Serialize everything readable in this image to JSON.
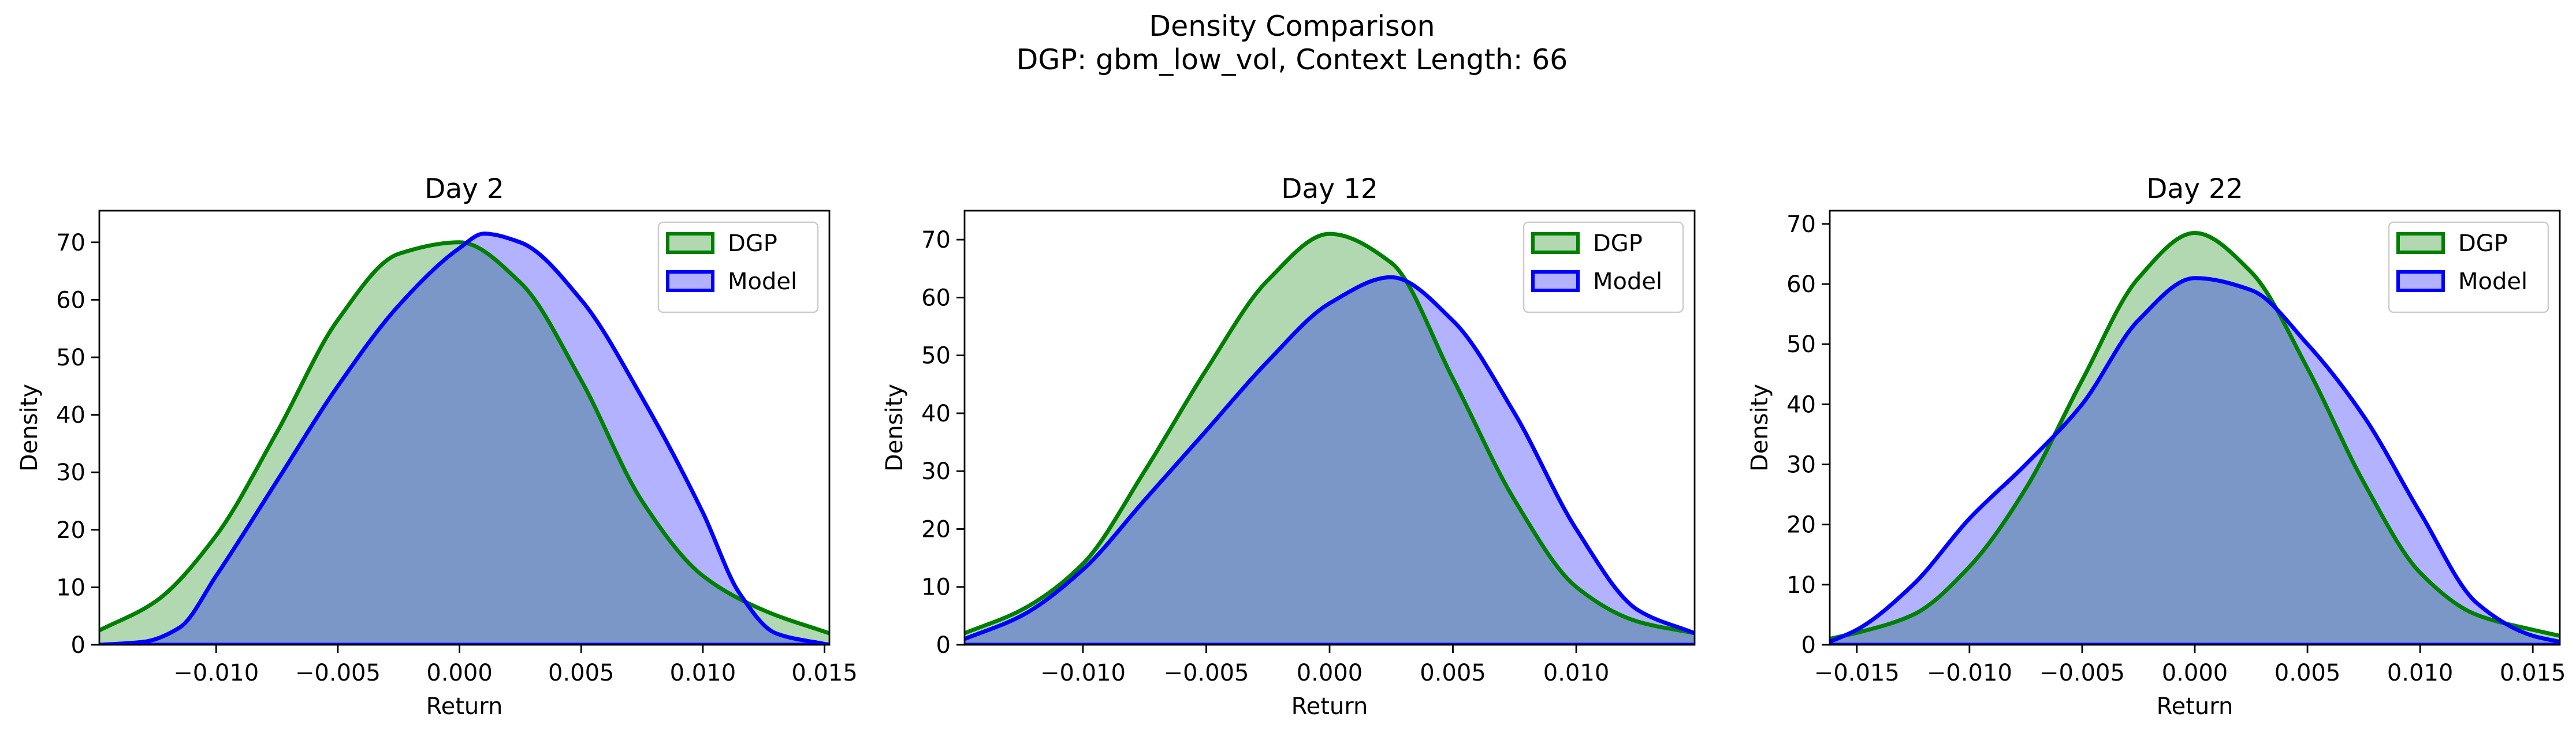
{
  "figure": {
    "title_line1": "Density Comparison",
    "title_line2": "DGP: gbm_low_vol, Context Length: 66"
  },
  "colors": {
    "dgp_line": "#008000",
    "dgp_fill": "#b2d8b2",
    "model_line": "#0000ff",
    "model_fill": "#b2b2ff",
    "overlap_fill": "#7b97c8"
  },
  "chart_data": [
    {
      "type": "area",
      "title": "Day 2",
      "xlabel": "Return",
      "ylabel": "Density",
      "xlim": [
        -0.0148,
        0.0152
      ],
      "ylim": [
        0,
        75.5
      ],
      "xticks": [
        -0.01,
        -0.005,
        0.0,
        0.005,
        0.01,
        0.015
      ],
      "xtick_labels": [
        "−0.010",
        "−0.005",
        "0.000",
        "0.005",
        "0.010",
        "0.015"
      ],
      "yticks": [
        0,
        10,
        20,
        30,
        40,
        50,
        60,
        70
      ],
      "ytick_labels": [
        "0",
        "10",
        "20",
        "30",
        "40",
        "50",
        "60",
        "70"
      ],
      "legend": {
        "position": "upper-right",
        "entries": [
          "DGP",
          "Model"
        ]
      },
      "series": [
        {
          "name": "DGP",
          "x": [
            -0.0148,
            -0.0125,
            -0.01,
            -0.0075,
            -0.005,
            -0.0025,
            0.0,
            0.0025,
            0.005,
            0.0075,
            0.01,
            0.0125,
            0.0152
          ],
          "y": [
            2.5,
            7.5,
            19,
            37,
            56.5,
            68,
            70,
            63,
            46,
            25,
            12,
            6,
            2
          ]
        },
        {
          "name": "Model",
          "x": [
            -0.0148,
            -0.013,
            -0.0115,
            -0.01,
            -0.0075,
            -0.005,
            -0.0025,
            0.0,
            0.001,
            0.0025,
            0.005,
            0.0075,
            0.01,
            0.0115,
            0.013,
            0.0152
          ],
          "y": [
            0,
            0.5,
            3,
            12,
            28.5,
            45,
            59,
            69,
            71.5,
            70,
            60,
            43,
            23,
            9,
            2,
            0
          ]
        }
      ]
    },
    {
      "type": "area",
      "title": "Day 12",
      "xlabel": "Return",
      "ylabel": "Density",
      "xlim": [
        -0.0148,
        0.0148
      ],
      "ylim": [
        0,
        75.0
      ],
      "xticks": [
        -0.01,
        -0.005,
        0.0,
        0.005,
        0.01
      ],
      "xtick_labels": [
        "−0.010",
        "−0.005",
        "0.000",
        "0.005",
        "0.010"
      ],
      "yticks": [
        0,
        10,
        20,
        30,
        40,
        50,
        60,
        70
      ],
      "ytick_labels": [
        "0",
        "10",
        "20",
        "30",
        "40",
        "50",
        "60",
        "70"
      ],
      "legend": {
        "position": "upper-right",
        "entries": [
          "DGP",
          "Model"
        ]
      },
      "series": [
        {
          "name": "DGP",
          "x": [
            -0.0148,
            -0.0125,
            -0.01,
            -0.0075,
            -0.005,
            -0.0025,
            0.0,
            0.0025,
            0.005,
            0.0075,
            0.01,
            0.0125,
            0.0148
          ],
          "y": [
            2,
            6,
            14,
            30,
            47.5,
            63,
            71,
            66,
            46,
            25,
            10,
            4,
            2
          ]
        },
        {
          "name": "Model",
          "x": [
            -0.0148,
            -0.0125,
            -0.01,
            -0.0075,
            -0.005,
            -0.0025,
            0.0,
            0.0025,
            0.005,
            0.0075,
            0.01,
            0.0125,
            0.0148
          ],
          "y": [
            1,
            5,
            13,
            25,
            37,
            49,
            59,
            63.5,
            56,
            40,
            20,
            6,
            2
          ]
        }
      ]
    },
    {
      "type": "area",
      "title": "Day 22",
      "xlabel": "Return",
      "ylabel": "Density",
      "xlim": [
        -0.0162,
        0.0162
      ],
      "ylim": [
        0,
        72.2
      ],
      "xticks": [
        -0.015,
        -0.01,
        -0.005,
        0.0,
        0.005,
        0.01,
        0.015
      ],
      "xtick_labels": [
        "−0.015",
        "−0.010",
        "−0.005",
        "0.000",
        "0.005",
        "0.010",
        "0.015"
      ],
      "yticks": [
        0,
        10,
        20,
        30,
        40,
        50,
        60,
        70
      ],
      "ytick_labels": [
        "0",
        "10",
        "20",
        "30",
        "40",
        "50",
        "60",
        "70"
      ],
      "legend": {
        "position": "upper-right",
        "entries": [
          "DGP",
          "Model"
        ]
      },
      "series": [
        {
          "name": "DGP",
          "x": [
            -0.0162,
            -0.015,
            -0.0125,
            -0.01,
            -0.0075,
            -0.005,
            -0.0025,
            0.0,
            0.0025,
            0.005,
            0.0075,
            0.01,
            0.0125,
            0.015,
            0.0162
          ],
          "y": [
            1,
            2,
            5,
            13,
            26,
            44,
            61,
            68.5,
            62,
            46,
            27,
            12,
            5,
            2.5,
            1.5
          ]
        },
        {
          "name": "Model",
          "x": [
            -0.0162,
            -0.015,
            -0.0125,
            -0.01,
            -0.0075,
            -0.005,
            -0.0025,
            0.0,
            0.0025,
            0.005,
            0.0075,
            0.01,
            0.0125,
            0.015,
            0.0162
          ],
          "y": [
            0.5,
            2.5,
            10,
            21,
            30,
            40,
            54,
            61,
            59,
            50,
            38,
            22,
            7,
            1.5,
            0.5
          ]
        }
      ]
    }
  ]
}
